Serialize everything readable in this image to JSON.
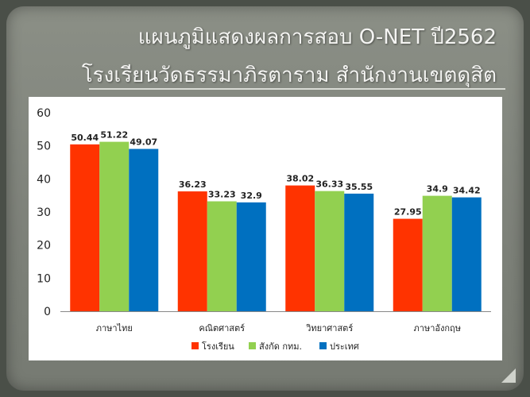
{
  "title": {
    "line1": "แผนภูมิแสดงผลการสอบ O-NET ปี2562",
    "line2": "โรงเรียนวัดธรรมาภิรตาราม สำนักงานเขตดุสิต"
  },
  "chart_data": {
    "type": "bar",
    "categories": [
      "ภาษาไทย",
      "คณิตศาสตร์",
      "วิทยาศาสตร์",
      "ภาษาอังกฤษ"
    ],
    "series": [
      {
        "name": "โรงเรียน",
        "color": "#ff3300",
        "values": [
          50.44,
          36.23,
          38.02,
          27.95
        ]
      },
      {
        "name": "สังกัด กทม.",
        "color": "#92d050",
        "values": [
          51.22,
          33.23,
          36.33,
          34.9
        ]
      },
      {
        "name": "ประเทศ",
        "color": "#0070c0",
        "values": [
          49.07,
          32.9,
          35.55,
          34.42
        ]
      }
    ],
    "ylim": [
      0,
      60
    ],
    "yticks": [
      0,
      10,
      20,
      30,
      40,
      50,
      60
    ],
    "data_labels": true,
    "grid": false,
    "legend": "bottom"
  }
}
